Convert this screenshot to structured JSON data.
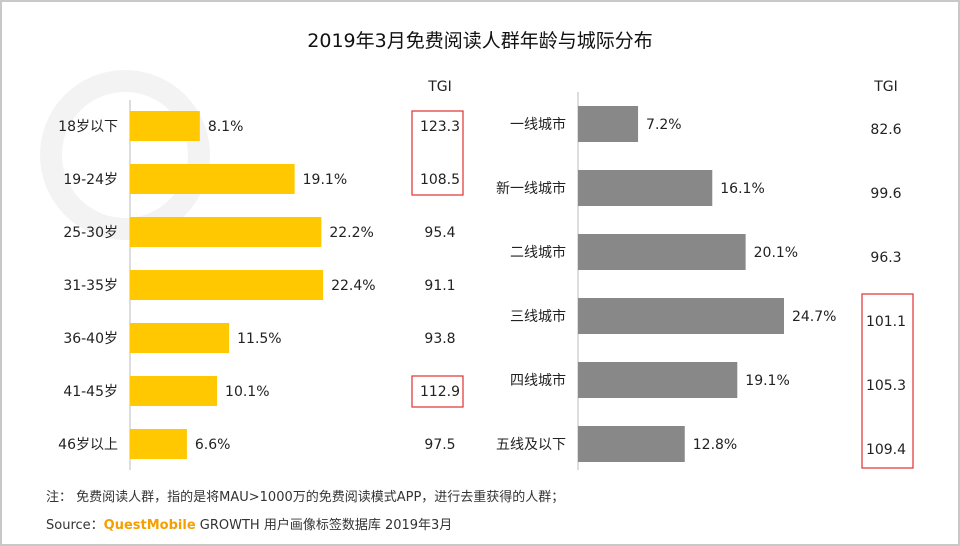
{
  "title": "2019年3月免费阅读人群年龄与城际分布",
  "watermark": "QUESTMOBILE",
  "chart_data": [
    {
      "type": "bar",
      "orientation": "horizontal",
      "categories": [
        "18岁以下",
        "19-24岁",
        "25-30岁",
        "31-35岁",
        "36-40岁",
        "41-45岁",
        "46岁以上"
      ],
      "values": [
        8.1,
        19.1,
        22.2,
        22.4,
        11.5,
        10.1,
        6.6
      ],
      "value_labels": [
        "8.1%",
        "19.1%",
        "22.2%",
        "22.4%",
        "11.5%",
        "10.1%",
        "6.6%"
      ],
      "color": "#FFC800",
      "tgi_header": "TGI",
      "tgi": [
        "123.3",
        "108.5",
        "95.4",
        "91.1",
        "93.8",
        "112.9",
        "97.5"
      ],
      "highlighted_tgi_groups": [
        [
          0,
          1
        ],
        [
          5
        ]
      ]
    },
    {
      "type": "bar",
      "orientation": "horizontal",
      "categories": [
        "一线城市",
        "新一线城市",
        "二线城市",
        "三线城市",
        "四线城市",
        "五线及以下"
      ],
      "values": [
        7.2,
        16.1,
        20.1,
        24.7,
        19.1,
        12.8
      ],
      "value_labels": [
        "7.2%",
        "16.1%",
        "20.1%",
        "24.7%",
        "19.1%",
        "12.8%"
      ],
      "color": "#888888",
      "tgi_header": "TGI",
      "tgi": [
        "82.6",
        "99.6",
        "96.3",
        "101.1",
        "105.3",
        "109.4"
      ],
      "highlighted_tgi_groups": [
        [
          3,
          4,
          5
        ]
      ]
    }
  ],
  "highlight_color": "#E03030",
  "footer": {
    "note": "注： 免费阅读人群，指的是将MAU>1000万的免费阅读模式APP，进行去重获得的人群；",
    "source_prefix": "Source：",
    "source_brand": "QuestMobile",
    "source_rest": "GROWTH 用户画像标签数据库 2019年3月"
  }
}
